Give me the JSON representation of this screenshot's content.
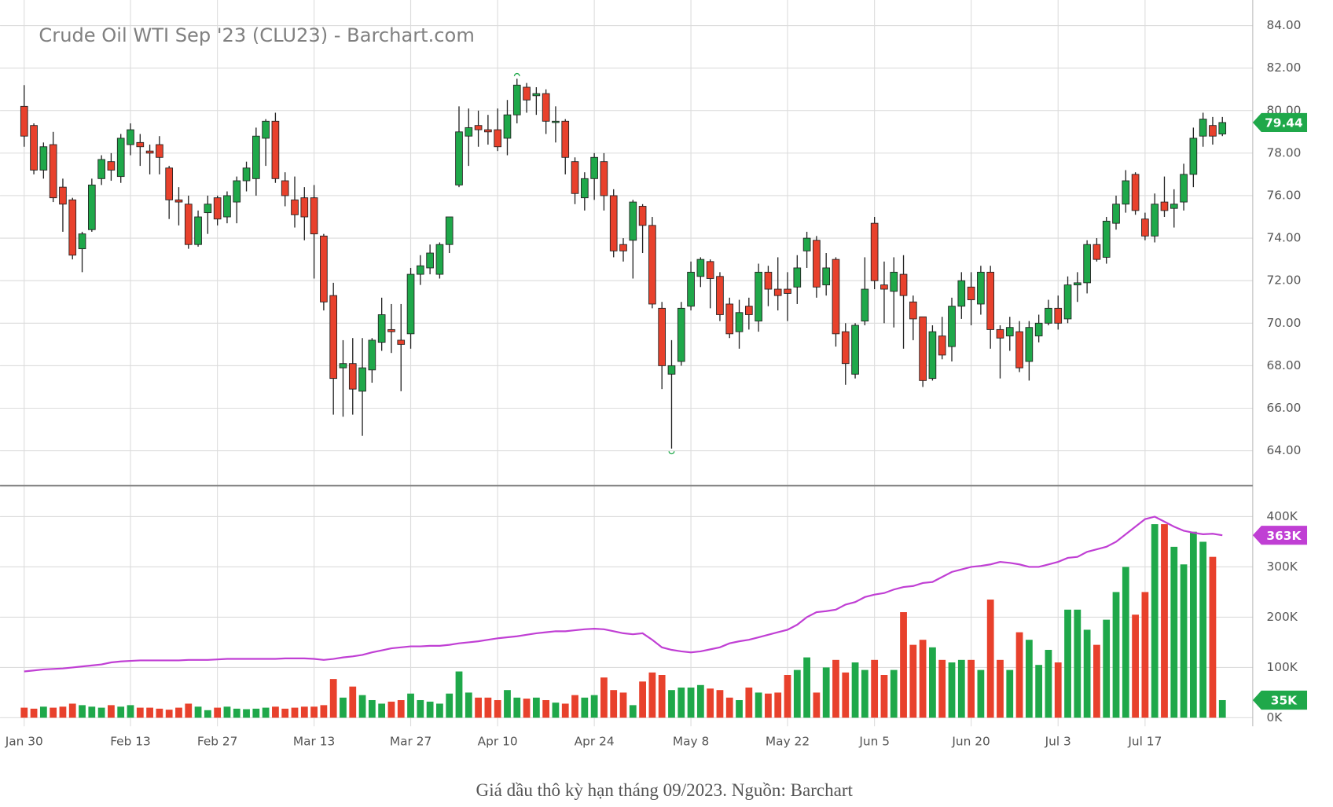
{
  "chart_data": [
    {
      "type": "candlestick",
      "title": "Crude Oil WTI Sep '23 (CLU23) - Barchart.com",
      "up_color": "#1fa84a",
      "down_color": "#e8412c",
      "grid": true,
      "open": [
        80.2,
        79.3,
        77.2,
        78.4,
        76.4,
        75.8,
        73.5,
        74.4,
        76.8,
        77.6,
        76.9,
        78.4,
        78.5,
        78.1,
        78.4,
        77.3,
        75.8,
        75.6,
        73.7,
        75.2,
        75.9,
        75.0,
        75.7,
        76.7,
        76.8,
        78.7,
        79.5,
        76.7,
        75.8,
        75.9,
        75.9,
        74.1,
        71.3,
        67.9,
        68.1,
        66.8,
        67.8,
        69.1,
        69.7,
        69.2,
        69.5,
        72.3,
        72.6,
        72.3,
        73.7,
        76.5,
        78.8,
        79.3,
        79.1,
        79.1,
        78.7,
        79.8,
        81.1,
        80.7,
        80.8,
        79.5,
        79.5,
        77.6,
        75.9,
        76.8,
        77.6,
        76.0,
        73.7,
        73.9,
        75.5,
        74.6,
        70.7,
        67.6,
        68.2,
        70.8,
        72.2,
        72.9,
        72.2,
        70.9,
        69.6,
        70.8,
        70.1,
        72.4,
        71.6,
        71.6,
        71.7,
        73.4,
        73.9,
        71.8,
        73.0,
        69.6,
        67.6,
        70.1,
        74.7,
        71.8,
        71.5,
        72.3,
        71.0,
        70.3,
        67.4,
        69.4,
        68.9,
        70.8,
        71.7,
        70.9,
        72.4,
        69.7,
        69.4,
        69.6,
        68.2,
        69.4,
        70.0,
        70.7,
        70.2,
        71.8,
        71.9,
        73.7,
        73.1,
        74.7,
        75.6,
        77.0,
        74.9,
        74.1,
        75.7,
        75.4,
        75.7,
        77.0,
        78.8,
        79.3,
        78.9
      ],
      "high": [
        81.2,
        79.4,
        78.5,
        79.0,
        76.8,
        75.9,
        74.3,
        76.8,
        77.9,
        78.0,
        78.9,
        79.4,
        78.9,
        78.4,
        78.8,
        77.4,
        76.4,
        76.0,
        75.3,
        76.0,
        76.0,
        76.2,
        76.9,
        77.6,
        79.2,
        79.6,
        79.9,
        77.1,
        76.9,
        76.4,
        76.5,
        74.2,
        71.9,
        69.2,
        69.3,
        69.3,
        69.3,
        71.2,
        70.9,
        70.9,
        72.6,
        73.2,
        73.7,
        73.8,
        75.0,
        80.2,
        80.1,
        80.0,
        79.8,
        80.1,
        80.5,
        81.5,
        81.3,
        81.1,
        81.0,
        80.2,
        79.6,
        77.8,
        77.1,
        78.0,
        78.0,
        76.3,
        74.0,
        75.8,
        75.6,
        75.0,
        71.0,
        69.2,
        71.0,
        72.9,
        73.1,
        73.0,
        72.4,
        71.2,
        71.1,
        71.2,
        72.8,
        72.7,
        73.1,
        72.4,
        73.2,
        74.3,
        74.1,
        73.3,
        73.1,
        70.0,
        70.0,
        73.1,
        75.0,
        72.9,
        73.1,
        73.2,
        71.3,
        70.3,
        69.9,
        70.3,
        71.2,
        72.4,
        72.4,
        72.7,
        72.7,
        69.9,
        70.3,
        70.1,
        70.1,
        70.4,
        71.1,
        71.3,
        72.2,
        72.4,
        73.9,
        74.0,
        75.0,
        76.0,
        77.2,
        77.1,
        75.2,
        76.1,
        76.9,
        76.3,
        77.5,
        79.2,
        79.9,
        79.7,
        79.7
      ],
      "low": [
        78.3,
        77.0,
        76.8,
        75.7,
        74.3,
        73.0,
        72.4,
        74.3,
        76.5,
        76.7,
        76.6,
        77.9,
        77.4,
        77.0,
        77.0,
        74.9,
        74.6,
        73.5,
        73.6,
        74.2,
        74.6,
        74.7,
        74.7,
        76.2,
        76.0,
        77.4,
        76.6,
        75.5,
        74.5,
        73.9,
        72.1,
        70.6,
        65.7,
        65.6,
        65.7,
        64.7,
        67.2,
        68.7,
        68.6,
        66.8,
        68.8,
        71.8,
        72.3,
        72.1,
        73.3,
        76.4,
        77.4,
        78.3,
        78.4,
        78.1,
        77.9,
        79.4,
        79.9,
        79.8,
        78.9,
        78.5,
        77.0,
        75.6,
        75.3,
        75.8,
        75.3,
        73.1,
        72.9,
        72.1,
        73.3,
        70.7,
        66.9,
        64.1,
        68.0,
        70.6,
        71.7,
        70.7,
        70.1,
        69.3,
        68.8,
        69.7,
        69.6,
        70.8,
        70.6,
        70.1,
        70.9,
        72.6,
        71.2,
        71.3,
        68.9,
        67.1,
        67.4,
        69.9,
        71.6,
        70.0,
        69.8,
        68.8,
        69.2,
        67.0,
        67.3,
        68.3,
        68.2,
        70.2,
        69.9,
        70.4,
        68.8,
        67.4,
        68.7,
        67.7,
        67.3,
        69.1,
        69.9,
        69.7,
        70.0,
        71.0,
        71.4,
        72.9,
        72.8,
        74.4,
        75.2,
        75.1,
        73.9,
        73.8,
        75.0,
        74.5,
        75.3,
        76.4,
        78.3,
        78.4,
        78.8
      ],
      "close": [
        78.8,
        77.2,
        78.3,
        75.9,
        75.6,
        73.2,
        74.2,
        76.5,
        77.7,
        77.2,
        78.7,
        79.1,
        78.3,
        78.0,
        77.8,
        75.8,
        75.7,
        73.7,
        75.0,
        75.6,
        74.9,
        76.0,
        76.7,
        77.3,
        78.8,
        79.5,
        76.8,
        76.0,
        75.1,
        75.0,
        74.2,
        71.0,
        67.4,
        68.1,
        66.9,
        67.9,
        69.2,
        70.4,
        69.6,
        69.0,
        72.3,
        72.7,
        73.3,
        73.7,
        75.0,
        79.0,
        79.2,
        79.1,
        79.0,
        78.3,
        79.8,
        81.2,
        80.5,
        80.8,
        79.5,
        79.5,
        77.8,
        76.1,
        76.8,
        77.8,
        76.0,
        73.4,
        73.4,
        75.7,
        74.6,
        70.9,
        68.0,
        68.0,
        70.7,
        72.4,
        73.0,
        72.1,
        70.4,
        69.5,
        70.5,
        70.4,
        72.4,
        71.6,
        71.3,
        71.4,
        72.6,
        74.0,
        71.7,
        72.6,
        69.5,
        68.1,
        69.9,
        71.6,
        72.0,
        71.6,
        72.4,
        71.3,
        70.2,
        67.3,
        69.6,
        68.5,
        70.8,
        72.0,
        71.1,
        72.4,
        69.7,
        69.3,
        69.8,
        67.9,
        69.8,
        70.0,
        70.7,
        70.0,
        71.8,
        71.9,
        73.7,
        73.0,
        74.8,
        75.6,
        76.7,
        75.3,
        74.1,
        75.6,
        75.3,
        75.6,
        77.0,
        78.7,
        79.6,
        78.8,
        79.44
      ],
      "last_value_label": "79.44",
      "ylim": [
        62.4,
        85.0
      ],
      "yticks": [
        {
          "value": 64,
          "label": "64.00"
        },
        {
          "value": 66,
          "label": "66.00"
        },
        {
          "value": 68,
          "label": "68.00"
        },
        {
          "value": 70,
          "label": "70.00"
        },
        {
          "value": 72,
          "label": "72.00"
        },
        {
          "value": 74,
          "label": "74.00"
        },
        {
          "value": 76,
          "label": "76.00"
        },
        {
          "value": 78,
          "label": "78.00"
        },
        {
          "value": 80,
          "label": "80.00"
        },
        {
          "value": 82,
          "label": "82.00"
        },
        {
          "value": 84,
          "label": "84.00"
        }
      ],
      "xticks": [
        {
          "value": 0,
          "label": "Jan 30"
        },
        {
          "value": 11,
          "label": "Feb 13"
        },
        {
          "value": 20,
          "label": "Feb 27"
        },
        {
          "value": 30,
          "label": "Mar 13"
        },
        {
          "value": 40,
          "label": "Mar 27"
        },
        {
          "value": 49,
          "label": "Apr 10"
        },
        {
          "value": 59,
          "label": "Apr 24"
        },
        {
          "value": 69,
          "label": "May 8"
        },
        {
          "value": 79,
          "label": "May 22"
        },
        {
          "value": 88,
          "label": "Jun 5"
        },
        {
          "value": 98,
          "label": "Jun 20"
        },
        {
          "value": 107,
          "label": "Jul 3"
        },
        {
          "value": 116,
          "label": "Jul 17"
        }
      ]
    },
    {
      "type": "bar",
      "values": [
        20,
        18,
        22,
        20,
        22,
        28,
        25,
        22,
        20,
        25,
        22,
        25,
        20,
        20,
        18,
        16,
        20,
        28,
        22,
        15,
        20,
        22,
        18,
        17,
        18,
        20,
        22,
        18,
        20,
        22,
        22,
        25,
        77,
        40,
        62,
        45,
        35,
        28,
        32,
        35,
        48,
        35,
        32,
        28,
        48,
        92,
        50,
        40,
        40,
        35,
        55,
        40,
        38,
        40,
        35,
        30,
        28,
        45,
        40,
        45,
        80,
        55,
        50,
        25,
        72,
        90,
        85,
        55,
        60,
        60,
        65,
        58,
        55,
        40,
        35,
        60,
        50,
        48,
        50,
        85,
        95,
        120,
        50,
        100,
        115,
        90,
        110,
        95,
        115,
        85,
        95,
        210,
        145,
        155,
        140,
        115,
        110,
        115,
        115,
        95,
        235,
        115,
        95,
        170,
        155,
        105,
        135,
        110,
        215,
        215,
        175,
        145,
        195,
        250,
        300,
        205,
        250,
        385,
        385,
        340,
        305,
        370,
        350,
        320,
        35
      ],
      "last_value_label": "35K",
      "moving_average": [
        92,
        94,
        96,
        97,
        98,
        100,
        102,
        104,
        106,
        110,
        112,
        113,
        114,
        114,
        114,
        114,
        114,
        115,
        115,
        115,
        116,
        117,
        117,
        117,
        117,
        117,
        117,
        118,
        118,
        118,
        117,
        115,
        117,
        120,
        122,
        125,
        130,
        134,
        138,
        140,
        142,
        142,
        143,
        143,
        145,
        148,
        150,
        152,
        155,
        158,
        160,
        162,
        165,
        168,
        170,
        172,
        172,
        174,
        176,
        177,
        176,
        172,
        168,
        166,
        168,
        155,
        140,
        135,
        132,
        130,
        132,
        136,
        140,
        148,
        152,
        155,
        160,
        165,
        170,
        175,
        185,
        200,
        210,
        212,
        215,
        225,
        230,
        240,
        245,
        248,
        255,
        260,
        262,
        268,
        270,
        280,
        290,
        295,
        300,
        302,
        305,
        310,
        308,
        305,
        300,
        300,
        305,
        310,
        318,
        320,
        330,
        335,
        340,
        350,
        365,
        380,
        395,
        400,
        390,
        380,
        372,
        368,
        365,
        366,
        363
      ],
      "moving_average_color": "#c03fd4",
      "moving_average_label": "363K",
      "ylim": [
        -17,
        460
      ],
      "yticks": [
        {
          "value": 0,
          "label": "0K"
        },
        {
          "value": 100,
          "label": "100K"
        },
        {
          "value": 200,
          "label": "200K"
        },
        {
          "value": 300,
          "label": "300K"
        },
        {
          "value": 400,
          "label": "400K"
        }
      ]
    }
  ],
  "caption": "Giá dầu thô kỳ hạn tháng 09/2023. Nguồn: Barchart"
}
